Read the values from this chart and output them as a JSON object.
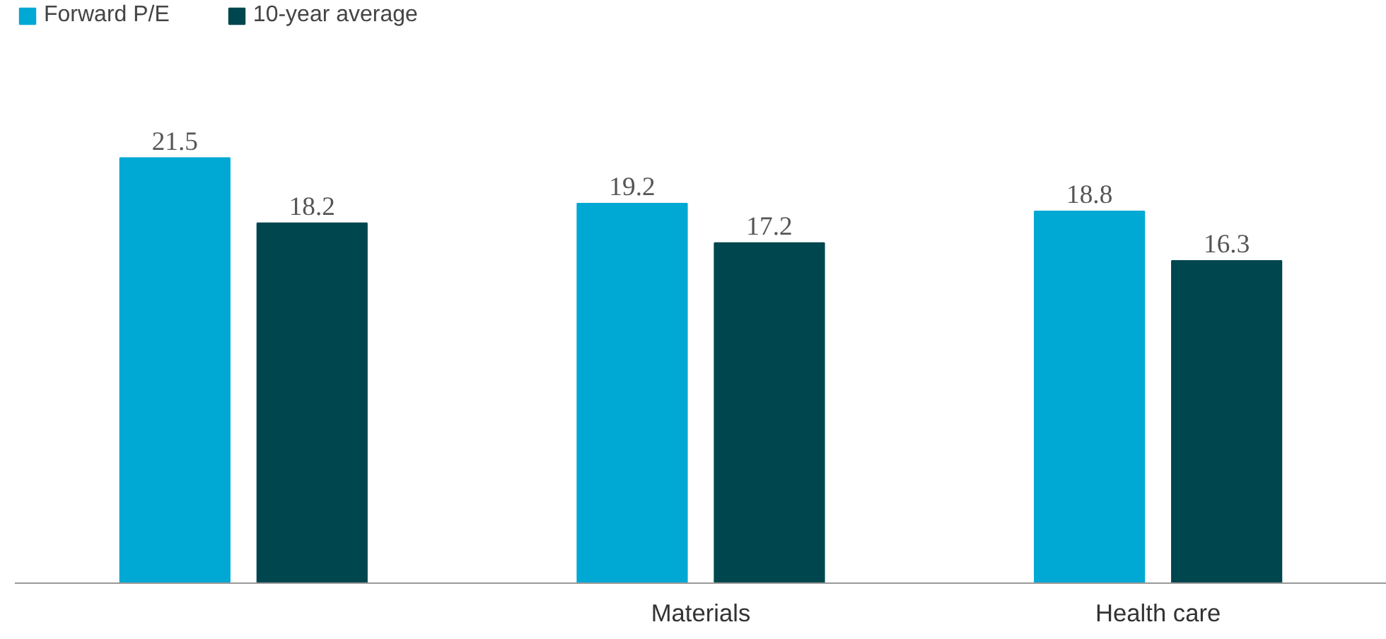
{
  "chart_data": {
    "type": "bar",
    "categories": [
      null,
      "Materials",
      "Health care"
    ],
    "series": [
      {
        "name": "Forward P/E",
        "color": "#00a8d4",
        "values": [
          21.5,
          19.2,
          18.8
        ]
      },
      {
        "name": "10-year average",
        "color": "#00464e",
        "values": [
          18.2,
          17.2,
          16.3
        ]
      }
    ],
    "data_labels": true,
    "legend": "top left",
    "grid": false
  }
}
